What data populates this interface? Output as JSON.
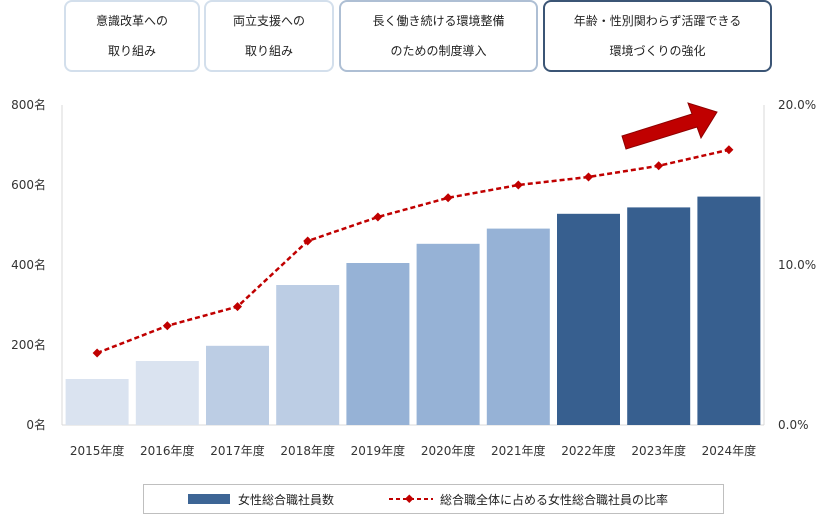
{
  "phases": [
    {
      "lines": [
        "意識改革への",
        "取り組み"
      ],
      "style": "light"
    },
    {
      "lines": [
        "両立支援への",
        "取り組み"
      ],
      "style": "light"
    },
    {
      "lines": [
        "長く働き続ける環境整備",
        "のための制度導入"
      ],
      "style": "mid"
    },
    {
      "lines": [
        "年齢・性別関わらず活躍できる",
        "環境づくりの強化"
      ],
      "style": "dark"
    }
  ],
  "chart_data": {
    "type": "bar",
    "categories": [
      "2015年度",
      "2016年度",
      "2017年度",
      "2018年度",
      "2019年度",
      "2020年度",
      "2021年度",
      "2022年度",
      "2023年度",
      "2024年度"
    ],
    "series": [
      {
        "name": "女性総合職社員数",
        "type": "bar",
        "axis": "left",
        "values": [
          115,
          160,
          198,
          350,
          405,
          453,
          491,
          528,
          544,
          571
        ]
      },
      {
        "name": "総合職全体に占める女性総合職社員の比率",
        "type": "line",
        "axis": "right",
        "values": [
          0.045,
          0.062,
          0.074,
          0.115,
          0.13,
          0.142,
          0.15,
          0.155,
          0.162,
          0.172
        ]
      }
    ],
    "left_axis": {
      "ylim": [
        0,
        800
      ],
      "ticks": [
        0,
        200,
        400,
        600,
        800
      ],
      "tick_labels": [
        "0名",
        "200名",
        "400名",
        "600名",
        "800名"
      ]
    },
    "right_axis": {
      "ylim": [
        0,
        0.2
      ],
      "ticks": [
        0,
        0.1,
        0.2
      ],
      "tick_labels": [
        "0.0%",
        "10.0%",
        "20.0%"
      ]
    },
    "bar_colors": [
      "#dae3f0",
      "#dae3f0",
      "#bccde4",
      "#bccde4",
      "#96b2d6",
      "#96b2d6",
      "#96b2d6",
      "#375f8f",
      "#375f8f",
      "#375f8f"
    ],
    "line_color": "#c00000",
    "arrow_color": "#c00000",
    "title": "",
    "xlabel": "",
    "legend_position": "bottom"
  },
  "legend": {
    "bar_label": "女性総合職社員数",
    "line_label": "総合職全体に占める女性総合職社員の比率"
  }
}
